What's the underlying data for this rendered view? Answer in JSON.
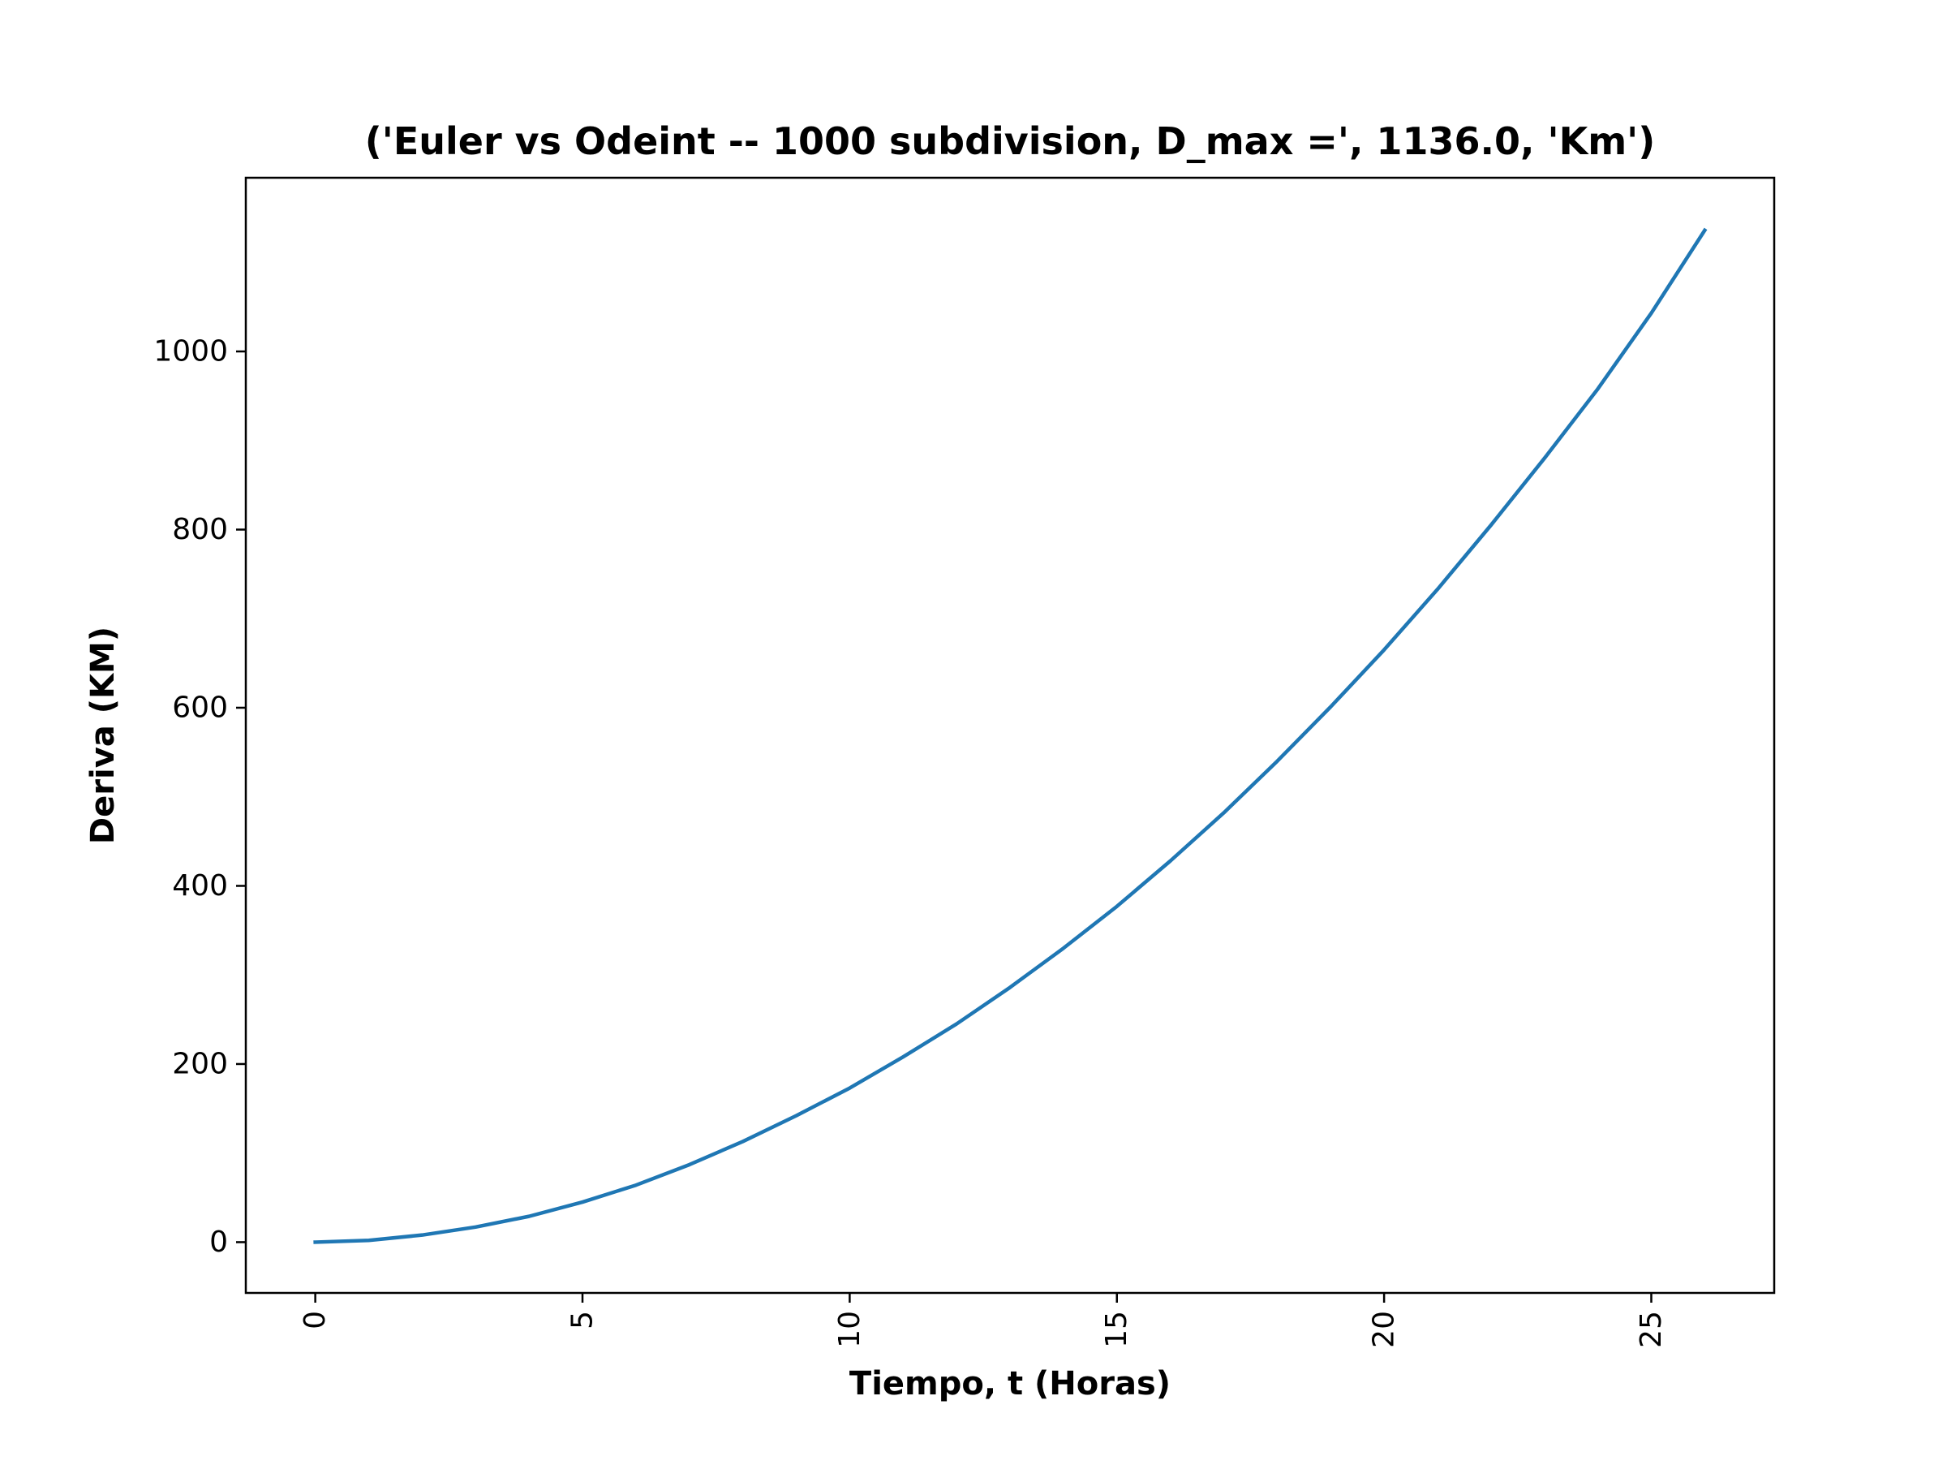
{
  "chart_data": {
    "type": "line",
    "title": "('Euler vs Odeint -- 1000 subdivision, D_max =', 1136.0, 'Km')",
    "xlabel": "Tiempo, t (Horas)",
    "ylabel": "Deriva (KM)",
    "xlim": [
      -1.3,
      27.3
    ],
    "ylim": [
      -57,
      1195
    ],
    "x_ticks": [
      0,
      5,
      10,
      15,
      20,
      25
    ],
    "y_ticks": [
      0,
      200,
      400,
      600,
      800,
      1000
    ],
    "x_tick_labels": [
      "0",
      "5",
      "10",
      "15",
      "20",
      "25"
    ],
    "y_tick_labels": [
      "0",
      "200",
      "400",
      "600",
      "800",
      "1000"
    ],
    "x_tick_rotation": "vertical",
    "grid": false,
    "legend": "none",
    "series": [
      {
        "color": "#1f77b4",
        "x": [
          0,
          1,
          2,
          3,
          4,
          5,
          6,
          7,
          8,
          9,
          10,
          11,
          12,
          13,
          14,
          15,
          16,
          17,
          18,
          19,
          20,
          21,
          22,
          23,
          24,
          25,
          26
        ],
        "y": [
          0,
          2,
          8,
          17,
          29,
          45,
          64,
          87,
          113,
          142,
          173,
          208,
          245,
          286,
          330,
          377,
          428,
          482,
          540,
          601,
          665,
          733,
          805,
          880,
          958,
          1043,
          1136
        ]
      }
    ]
  }
}
